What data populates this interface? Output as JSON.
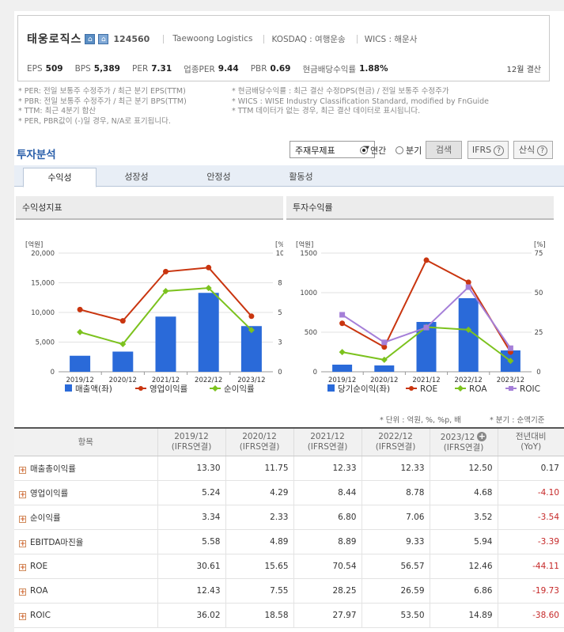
{
  "company": {
    "name": "태웅로직스",
    "code": "124560",
    "english_name": "Taewoong Logistics",
    "market": "KOSDAQ : 여행운송",
    "wics": "WICS : 해운사",
    "icon1": "building-icon",
    "icon2": "building-icon-2"
  },
  "metrics": [
    {
      "label": "EPS",
      "value": "509"
    },
    {
      "label": "BPS",
      "value": "5,389"
    },
    {
      "label": "PER",
      "value": "7.31"
    },
    {
      "label": "업종PER",
      "value": "9.44"
    },
    {
      "label": "PBR",
      "value": "0.69"
    },
    {
      "label": "현금배당수익률",
      "value": "1.88%"
    }
  ],
  "settlement": "12월 결산",
  "notes": {
    "left": [
      "* PER: 전일 보통주 수정주가 / 최근 분기 EPS(TTM)",
      "* PBR: 전일 보통주 수정주가 / 최근 분기 BPS(TTM)",
      "* TTM: 최근 4분기 합산",
      "* PER, PBR값이 (-)일 경우, N/A로 표기됩니다."
    ],
    "right": [
      "* 현금배당수익률 : 최근 결산 수정DPS(현금) / 전일 보통주 수정주가",
      "* WICS : WISE Industry Classification Standard, modified by FnGuide",
      "* TTM 데이터가 없는 경우, 최근 결산 데이터로 표시됩니다."
    ]
  },
  "analysis": {
    "title": "투자분석",
    "select_value": "주재무제표",
    "radio_annual": "연간",
    "radio_quarter": "분기",
    "search_btn": "검색",
    "ifrs_btn": "IFRS",
    "formula_btn": "산식",
    "help_mark": "?"
  },
  "tabs": [
    "수익성",
    "성장성",
    "안정성",
    "활동성"
  ],
  "charts": {
    "left": {
      "title": "수익성지표",
      "unit_left": "[억원]",
      "unit_right": "[%]",
      "legend": [
        "매출액(좌)",
        "영업이익률",
        "순이익률"
      ]
    },
    "right": {
      "title": "투자수익률",
      "unit_left": "[억원]",
      "unit_right": "[%]",
      "legend": [
        "당기순이익(좌)",
        "ROE",
        "ROA",
        "ROIC"
      ]
    }
  },
  "chart_data": [
    {
      "type": "bar",
      "title": "수익성지표",
      "categories": [
        "2019/12",
        "2020/12",
        "2021/12",
        "2022/12",
        "2023/12"
      ],
      "y_left": {
        "label": "[억원]",
        "range": [
          0,
          20000
        ],
        "ticks": [
          "0",
          "5,000",
          "10,000",
          "15,000",
          "20,000"
        ]
      },
      "y_right": {
        "label": "[%]",
        "range": [
          0,
          10
        ],
        "ticks": [
          "0",
          "3",
          "5",
          "8",
          "10"
        ]
      },
      "series": [
        {
          "name": "매출액(좌)",
          "kind": "bar",
          "axis": "left",
          "color": "#2a6ad9",
          "values": [
            2700,
            3400,
            9300,
            13300,
            7700
          ]
        },
        {
          "name": "영업이익률",
          "kind": "line",
          "axis": "right",
          "color": "#c9350f",
          "values": [
            5.24,
            4.29,
            8.44,
            8.78,
            4.68
          ]
        },
        {
          "name": "순이익률",
          "kind": "line",
          "axis": "right",
          "color": "#7cc21e",
          "values": [
            3.34,
            2.33,
            6.8,
            7.06,
            3.52
          ]
        }
      ],
      "grid": true,
      "legend_position": "bottom"
    },
    {
      "type": "bar",
      "title": "투자수익률",
      "categories": [
        "2019/12",
        "2020/12",
        "2021/12",
        "2022/12",
        "2023/12"
      ],
      "y_left": {
        "label": "[억원]",
        "range": [
          0,
          1500
        ],
        "ticks": [
          "0",
          "500",
          "1000",
          "1500"
        ]
      },
      "y_right": {
        "label": "[%]",
        "range": [
          0,
          75
        ],
        "ticks": [
          "0",
          "25",
          "50",
          "75"
        ]
      },
      "series": [
        {
          "name": "당기순이익(좌)",
          "kind": "bar",
          "axis": "left",
          "color": "#2a6ad9",
          "values": [
            90,
            80,
            630,
            930,
            270
          ]
        },
        {
          "name": "ROE",
          "kind": "line",
          "axis": "right",
          "color": "#c9350f",
          "marker": "circle",
          "values": [
            30.61,
            15.65,
            70.54,
            56.57,
            12.46
          ]
        },
        {
          "name": "ROA",
          "kind": "line",
          "axis": "right",
          "color": "#7cc21e",
          "marker": "diamond",
          "values": [
            12.43,
            7.55,
            28.25,
            26.59,
            6.86
          ]
        },
        {
          "name": "ROIC",
          "kind": "line",
          "axis": "right",
          "color": "#a57fd8",
          "marker": "square",
          "values": [
            36.02,
            18.58,
            27.97,
            53.5,
            14.89
          ]
        }
      ],
      "grid": true,
      "legend_position": "bottom"
    }
  ],
  "table_notes": {
    "unit": "* 단위 : 억원, %, %p, 배",
    "quarter": "* 분기 : 순액기준"
  },
  "table": {
    "header_item": "항목",
    "columns": [
      {
        "year": "2019/12",
        "basis": "(IFRS연결)"
      },
      {
        "year": "2020/12",
        "basis": "(IFRS연결)"
      },
      {
        "year": "2021/12",
        "basis": "(IFRS연결)"
      },
      {
        "year": "2022/12",
        "basis": "(IFRS연결)"
      },
      {
        "year": "2023/12",
        "basis": "(IFRS연결)"
      }
    ],
    "yoy_header": {
      "line1": "전년대비",
      "line2": "(YoY)"
    },
    "rows": [
      {
        "name": "매출총이익률",
        "values": [
          "13.30",
          "11.75",
          "12.33",
          "12.33",
          "12.50"
        ],
        "yoy": "0.17"
      },
      {
        "name": "영업이익률",
        "values": [
          "5.24",
          "4.29",
          "8.44",
          "8.78",
          "4.68"
        ],
        "yoy": "-4.10"
      },
      {
        "name": "순이익률",
        "values": [
          "3.34",
          "2.33",
          "6.80",
          "7.06",
          "3.52"
        ],
        "yoy": "-3.54"
      },
      {
        "name": "EBITDA마진율",
        "values": [
          "5.58",
          "4.89",
          "8.89",
          "9.33",
          "5.94"
        ],
        "yoy": "-3.39"
      },
      {
        "name": "ROE",
        "values": [
          "30.61",
          "15.65",
          "70.54",
          "56.57",
          "12.46"
        ],
        "yoy": "-44.11"
      },
      {
        "name": "ROA",
        "values": [
          "12.43",
          "7.55",
          "28.25",
          "26.59",
          "6.86"
        ],
        "yoy": "-19.73"
      },
      {
        "name": "ROIC",
        "values": [
          "36.02",
          "18.58",
          "27.97",
          "53.50",
          "14.89"
        ],
        "yoy": "-38.60"
      }
    ]
  }
}
